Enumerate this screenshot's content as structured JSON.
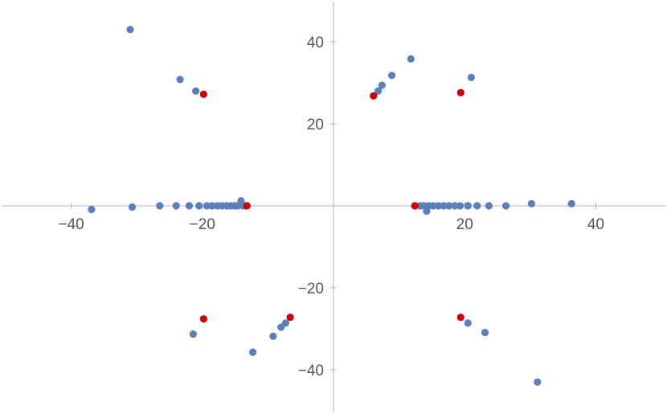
{
  "chart_data": {
    "type": "scatter",
    "title": "",
    "xlabel": "",
    "ylabel": "",
    "xlim": [
      -50,
      50
    ],
    "ylim": [
      -50,
      50
    ],
    "grid": false,
    "x_ticks": [
      {
        "value": -40,
        "label": "−40"
      },
      {
        "value": -20,
        "label": "−20"
      },
      {
        "value": 20,
        "label": "20"
      },
      {
        "value": 40,
        "label": "40"
      }
    ],
    "y_ticks": [
      {
        "value": 40,
        "label": "40"
      },
      {
        "value": 20,
        "label": "20"
      },
      {
        "value": -20,
        "label": "−20"
      },
      {
        "value": -40,
        "label": "−40"
      }
    ],
    "series": [
      {
        "color": "#5b80b9",
        "points": [
          [
            -31.0,
            43.0
          ],
          [
            -23.4,
            30.8
          ],
          [
            -21.0,
            28.0
          ],
          [
            11.8,
            35.8
          ],
          [
            8.9,
            31.8
          ],
          [
            7.4,
            29.4
          ],
          [
            6.8,
            28.0
          ],
          [
            21.0,
            31.3
          ],
          [
            -36.9,
            -0.9
          ],
          [
            -30.7,
            -0.3
          ],
          [
            -26.5,
            0.0
          ],
          [
            -24.0,
            0.0
          ],
          [
            -22.0,
            0.0
          ],
          [
            -20.5,
            0.0
          ],
          [
            -19.3,
            0.0
          ],
          [
            -18.5,
            0.0
          ],
          [
            -17.7,
            0.0
          ],
          [
            -17.0,
            0.0
          ],
          [
            -16.3,
            0.0
          ],
          [
            -15.7,
            0.0
          ],
          [
            -15.1,
            0.0
          ],
          [
            -14.6,
            0.0
          ],
          [
            -14.1,
            1.2
          ],
          [
            -13.8,
            0.0
          ],
          [
            -13.4,
            0.0
          ],
          [
            13.2,
            0.0
          ],
          [
            13.8,
            0.0
          ],
          [
            14.2,
            -1.3
          ],
          [
            14.5,
            0.0
          ],
          [
            15.2,
            0.0
          ],
          [
            16.0,
            0.0
          ],
          [
            16.8,
            0.0
          ],
          [
            17.6,
            0.0
          ],
          [
            18.5,
            0.0
          ],
          [
            19.3,
            0.0
          ],
          [
            20.5,
            0.0
          ],
          [
            21.9,
            0.0
          ],
          [
            23.7,
            0.0
          ],
          [
            26.3,
            0.0
          ],
          [
            30.2,
            0.5
          ],
          [
            36.3,
            0.5
          ],
          [
            -21.4,
            -31.3
          ],
          [
            -12.3,
            -35.7
          ],
          [
            -9.2,
            -31.8
          ],
          [
            -8.0,
            -29.6
          ],
          [
            -7.3,
            -28.6
          ],
          [
            20.5,
            -28.6
          ],
          [
            23.1,
            -30.9
          ],
          [
            31.1,
            -43.0
          ]
        ]
      },
      {
        "color": "#cc0000",
        "points": [
          [
            -19.8,
            27.2
          ],
          [
            6.1,
            26.8
          ],
          [
            19.4,
            27.6
          ],
          [
            -13.2,
            0.0
          ],
          [
            12.4,
            0.0
          ],
          [
            -19.8,
            -27.6
          ],
          [
            -6.6,
            -27.2
          ],
          [
            19.4,
            -27.2
          ]
        ]
      }
    ]
  }
}
